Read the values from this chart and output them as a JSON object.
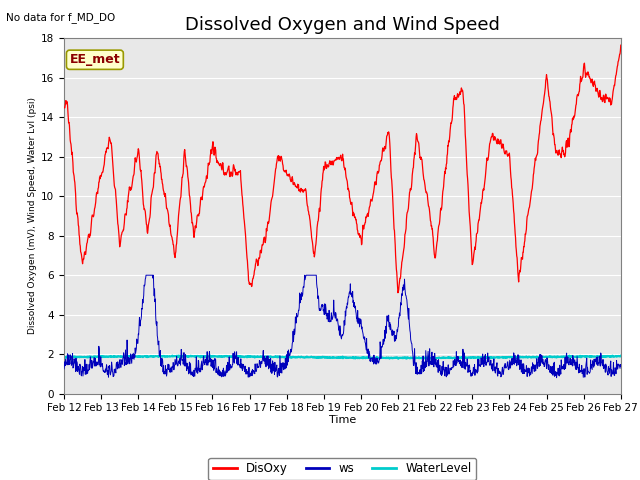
{
  "title": "Dissolved Oxygen and Wind Speed",
  "xlabel": "Time",
  "ylabel": "Dissolved Oxygen (mV), Wind Speed, Water Lvl (psi)",
  "top_left_text": "No data for f_MD_DO",
  "annotation_box": "EE_met",
  "legend_labels": [
    "DisOxy",
    "ws",
    "WaterLevel"
  ],
  "disoxy_color": "#FF0000",
  "ws_color": "#0000BB",
  "water_color": "#00CCCC",
  "water_level_value": 1.85,
  "ylim": [
    0,
    18
  ],
  "xtick_labels": [
    "Feb 12",
    "Feb 13",
    "Feb 14",
    "Feb 15",
    "Feb 16",
    "Feb 17",
    "Feb 18",
    "Feb 19",
    "Feb 20",
    "Feb 21",
    "Feb 22",
    "Feb 23",
    "Feb 24",
    "Feb 25",
    "Feb 26",
    "Feb 27"
  ],
  "ytick_values": [
    0,
    2,
    4,
    6,
    8,
    10,
    12,
    14,
    16,
    18
  ],
  "plot_bg_color": "#E8E8E8",
  "title_fontsize": 13,
  "label_fontsize": 8,
  "tick_fontsize": 7.5
}
